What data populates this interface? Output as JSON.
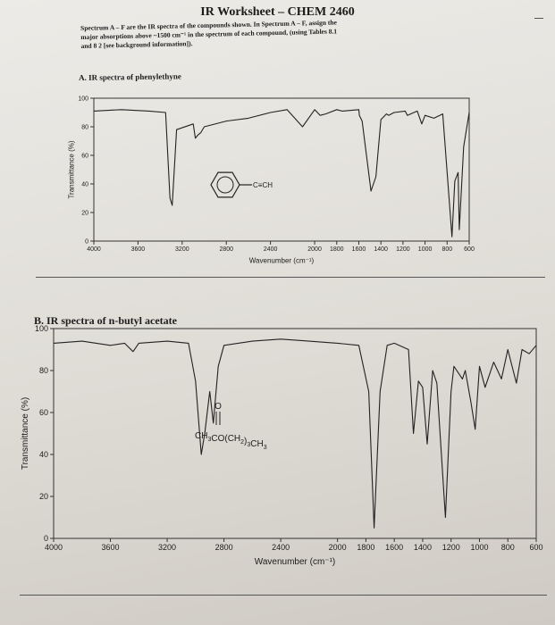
{
  "worksheet": {
    "title": "IR Worksheet – CHEM 2460",
    "instructions": [
      "Spectrum A – F are the IR spectra of the compounds shown. In Spectrum A – F, assign the",
      "major absorptions above ~1500 cm⁻¹ in the spectrum of each compound, (using Tables 8.1",
      "and 8 2 [see background information])."
    ]
  },
  "chart_data": [
    {
      "type": "line",
      "title": "A. IR spectra of phenylethyne",
      "xlabel": "Wavenumber (cm⁻¹)",
      "ylabel": "Transmittance (%)",
      "xlim": [
        4000,
        600
      ],
      "ylim": [
        0,
        100
      ],
      "x_ticks": [
        4000,
        3600,
        3200,
        2800,
        2400,
        2000,
        1800,
        1600,
        1400,
        1200,
        1000,
        800,
        600
      ],
      "y_ticks": [
        0,
        20,
        40,
        60,
        80,
        100
      ],
      "annotation": "C≡CH",
      "series": [
        {
          "x": [
            4000,
            3750,
            3500,
            3350,
            3310,
            3290,
            3250,
            3100,
            3080,
            3060,
            3030,
            3000,
            2800,
            2600,
            2400,
            2250,
            2110,
            2000,
            1950,
            1900,
            1800,
            1750,
            1600,
            1595,
            1570,
            1490,
            1445,
            1400,
            1350,
            1330,
            1280,
            1180,
            1160,
            1070,
            1030,
            1000,
            920,
            840,
            756,
            730,
            700,
            690,
            650,
            600
          ],
          "y": [
            91,
            92,
            91,
            90,
            30,
            25,
            78,
            82,
            72,
            74,
            76,
            80,
            84,
            86,
            90,
            92,
            80,
            92,
            88,
            89,
            92,
            91,
            92,
            88,
            84,
            35,
            45,
            85,
            89,
            88,
            90,
            91,
            88,
            91,
            82,
            88,
            86,
            89,
            3,
            42,
            48,
            8,
            66,
            90
          ]
        }
      ]
    },
    {
      "type": "line",
      "title": "B. IR spectra of n-butyl acetate",
      "xlabel": "Wavenumber (cm⁻¹)",
      "ylabel": "Transmittance (%)",
      "xlim": [
        4000,
        600
      ],
      "ylim": [
        0,
        100
      ],
      "x_ticks": [
        4000,
        3600,
        3200,
        2800,
        2400,
        2000,
        1800,
        1600,
        1400,
        1200,
        1000,
        800,
        600
      ],
      "y_ticks": [
        0,
        20,
        40,
        60,
        80,
        100
      ],
      "annotation_top": "O",
      "annotation_formula": "CH3CO(CH2)3CH3",
      "series": [
        {
          "x": [
            4000,
            3800,
            3600,
            3500,
            3440,
            3400,
            3200,
            3050,
            3000,
            2960,
            2935,
            2900,
            2875,
            2840,
            2800,
            2600,
            2400,
            2200,
            2000,
            1850,
            1780,
            1742,
            1700,
            1650,
            1600,
            1500,
            1465,
            1430,
            1400,
            1368,
            1330,
            1300,
            1240,
            1200,
            1180,
            1120,
            1100,
            1060,
            1030,
            1000,
            960,
            900,
            845,
            800,
            740,
            700,
            650,
            600
          ],
          "y": [
            93,
            94,
            92,
            93,
            89,
            93,
            94,
            93,
            75,
            40,
            50,
            70,
            55,
            82,
            92,
            94,
            95,
            94,
            93,
            92,
            70,
            5,
            70,
            92,
            93,
            90,
            50,
            75,
            72,
            45,
            80,
            74,
            10,
            70,
            82,
            76,
            80,
            65,
            52,
            82,
            72,
            84,
            76,
            90,
            74,
            90,
            88,
            92
          ]
        }
      ]
    }
  ]
}
